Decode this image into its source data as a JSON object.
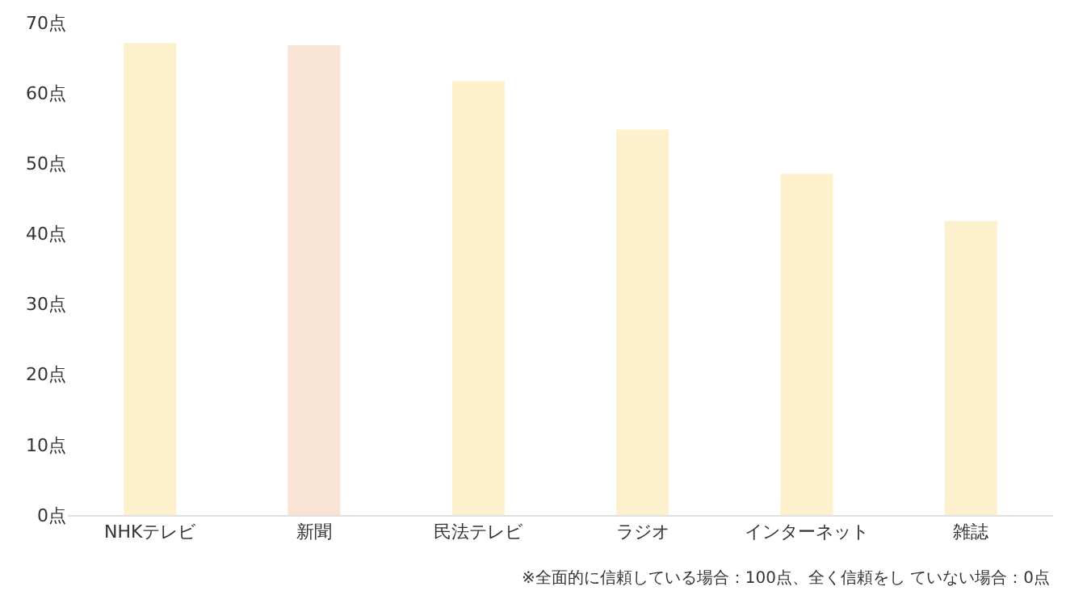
{
  "chart_data": {
    "type": "bar",
    "categories": [
      "NHKテレビ",
      "新聞",
      "民法テレビ",
      "ラジオ",
      "インターネット",
      "雑誌"
    ],
    "values": [
      67.1,
      66.8,
      61.7,
      54.8,
      48.5,
      41.8
    ],
    "colors": [
      "#fdf0cc",
      "#f8e3d5",
      "#fdf0cc",
      "#fdf0cc",
      "#fdf0cc",
      "#fdf0cc"
    ],
    "ylim": [
      0,
      70
    ],
    "yticks": [
      {
        "value": 0,
        "label": "0点"
      },
      {
        "value": 10,
        "label": "10点"
      },
      {
        "value": 20,
        "label": "20点"
      },
      {
        "value": 30,
        "label": "30点"
      },
      {
        "value": 40,
        "label": "40点"
      },
      {
        "value": 50,
        "label": "50点"
      },
      {
        "value": 60,
        "label": "60点"
      },
      {
        "value": 70,
        "label": "70点"
      }
    ],
    "grid": false,
    "annotations": [
      "※全面的に信頼している場合：100点、全く信頼をし ていない場合：0点"
    ]
  }
}
